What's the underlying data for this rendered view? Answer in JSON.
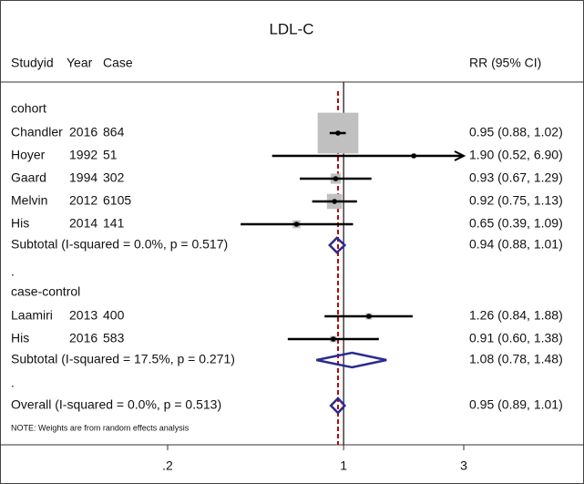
{
  "chart_data": {
    "type": "forest",
    "title": "LDL-C",
    "columns": [
      "Studyid",
      "Year",
      "Case"
    ],
    "effect_header": "RR (95% CI)",
    "log_scale": true,
    "xlim": [
      0.2,
      3
    ],
    "xticks": [
      {
        "value": 0.2,
        "label": ".2"
      },
      1,
      3
    ],
    "null_value": 1,
    "box_color": "#c0c0c0",
    "diamond_color": "#2b2b8c",
    "overall_line_color": "#c00000",
    "separator": ".",
    "groups": [
      {
        "name": "cohort",
        "studies": [
          {
            "name": "Chandler",
            "year": 2016,
            "case": 864,
            "rr": 0.95,
            "lower": 0.88,
            "upper": 1.02,
            "weight": 80,
            "value_label": "0.95 (0.88, 1.02)"
          },
          {
            "name": "Hoyer",
            "year": 1992,
            "case": 51,
            "rr": 1.9,
            "lower": 0.52,
            "upper": 6.9,
            "weight": 1,
            "value_label": "1.90 (0.52, 6.90)"
          },
          {
            "name": "Gaard",
            "year": 1994,
            "case": 302,
            "rr": 0.93,
            "lower": 0.67,
            "upper": 1.29,
            "weight": 5,
            "value_label": "0.93 (0.67, 1.29)"
          },
          {
            "name": "Melvin",
            "year": 2012,
            "case": 6105,
            "rr": 0.92,
            "lower": 0.75,
            "upper": 1.13,
            "weight": 11,
            "value_label": "0.92 (0.75, 1.13)"
          },
          {
            "name": "His",
            "year": 2014,
            "case": 141,
            "rr": 0.65,
            "lower": 0.39,
            "upper": 1.09,
            "weight": 3,
            "value_label": "0.65 (0.39, 1.09)"
          }
        ],
        "subtotal": {
          "label": "Subtotal  (I-squared = 0.0%, p = 0.517)",
          "rr": 0.94,
          "lower": 0.88,
          "upper": 1.01,
          "value_label": "0.94 (0.88, 1.01)"
        }
      },
      {
        "name": "case-control",
        "studies": [
          {
            "name": "Laamiri",
            "year": 2013,
            "case": 400,
            "rr": 1.26,
            "lower": 0.84,
            "upper": 1.88,
            "weight": 2,
            "value_label": "1.26 (0.84, 1.88)"
          },
          {
            "name": "His",
            "year": 2016,
            "case": 583,
            "rr": 0.91,
            "lower": 0.6,
            "upper": 1.38,
            "weight": 2,
            "value_label": "0.91 (0.60, 1.38)"
          }
        ],
        "subtotal": {
          "label": "Subtotal  (I-squared = 17.5%, p = 0.271)",
          "rr": 1.08,
          "lower": 0.78,
          "upper": 1.48,
          "value_label": "1.08 (0.78, 1.48)"
        }
      }
    ],
    "overall": {
      "label": "Overall  (I-squared = 0.0%, p = 0.513)",
      "rr": 0.95,
      "lower": 0.89,
      "upper": 1.01,
      "value_label": "0.95 (0.89, 1.01)"
    },
    "note": "NOTE: Weights are from random effects analysis"
  }
}
